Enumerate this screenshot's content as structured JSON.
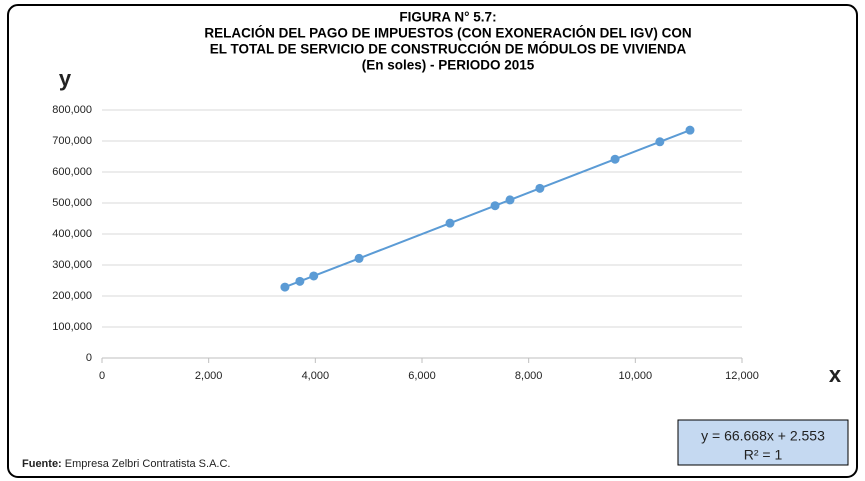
{
  "chart_data": {
    "type": "scatter",
    "title_lines": [
      "FIGURA N° 5.7:",
      "RELACIÓN DEL PAGO DE  IMPUESTOS (CON EXONERACIÓN DEL IGV) CON",
      "EL TOTAL DE SERVICIO DE CONSTRUCCIÓN DE MÓDULOS DE VIVIENDA",
      "(En soles) - PERIODO 2015"
    ],
    "x_label": "x",
    "y_label": "y",
    "source_label": "Fuente:",
    "source": "Empresa Zelbri Contratista S.A.C.",
    "equation": "y = 66.668x + 2.553",
    "r_squared": "R² = 1",
    "series": [
      {
        "color": "#5b9bd5",
        "x": [
          3430,
          3710,
          3970,
          4820,
          6525,
          7370,
          7650,
          8210,
          9620,
          10460,
          11025
        ],
        "values": [
          228700,
          247300,
          264700,
          321300,
          435000,
          491300,
          510000,
          547300,
          641300,
          697400,
          735000
        ]
      }
    ],
    "xlim": [
      0,
      12000
    ],
    "xticks": [
      0,
      {
        "value": 2000,
        "label": "2,000"
      },
      {
        "value": 4000,
        "label": "4,000"
      },
      {
        "value": 6000,
        "label": "6,000"
      },
      {
        "value": 8000,
        "label": "8,000"
      },
      {
        "value": 10000,
        "label": "10,000"
      },
      {
        "value": 12000,
        "label": "12,000"
      }
    ],
    "ylim": [
      0,
      800000
    ],
    "yticks": [
      0,
      {
        "value": 100000,
        "label": "100,000"
      },
      {
        "value": 200000,
        "label": "200,000"
      },
      {
        "value": 300000,
        "label": "300,000"
      },
      {
        "value": 400000,
        "label": "400,000"
      },
      {
        "value": 500000,
        "label": "500,000"
      },
      {
        "value": 600000,
        "label": "600,000"
      },
      {
        "value": 700000,
        "label": "700,000"
      },
      {
        "value": 800000,
        "label": "800,000"
      }
    ],
    "grid": true
  }
}
